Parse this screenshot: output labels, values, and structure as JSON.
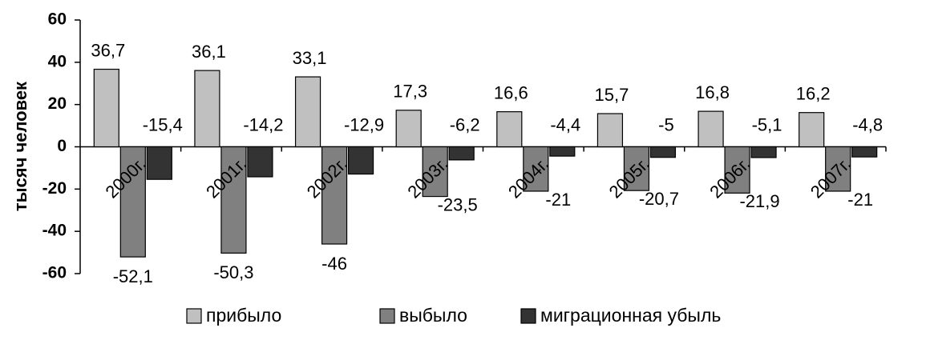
{
  "chart_data": {
    "type": "bar",
    "categories": [
      "2000г.",
      "2001г.",
      "2002г.",
      "2003г.",
      "2004г.",
      "2005г.",
      "2006г.",
      "2007г."
    ],
    "series": [
      {
        "name": "прибыло",
        "values": [
          36.7,
          36.1,
          33.1,
          17.3,
          16.6,
          15.7,
          16.8,
          16.2
        ],
        "labels": [
          "36,7",
          "36,1",
          "33,1",
          "17,3",
          "16,6",
          "15,7",
          "16,8",
          "16,2"
        ],
        "color": "#c0c0c0"
      },
      {
        "name": "выбыло",
        "values": [
          -52.1,
          -50.3,
          -46,
          -23.5,
          -21,
          -20.7,
          -21.9,
          -21
        ],
        "labels": [
          "-52,1",
          "-50,3",
          "-46",
          "-23,5",
          "-21",
          "-20,7",
          "-21,9",
          "-21"
        ],
        "color": "#808080"
      },
      {
        "name": "миграционная убыль",
        "values": [
          -15.4,
          -14.2,
          -12.9,
          -6.2,
          -4.4,
          -5,
          -5.1,
          -4.8
        ],
        "labels": [
          "-15,4",
          "-14,2",
          "-12,9",
          "-6,2",
          "-4,4",
          "-5",
          "-5,1",
          "-4,8"
        ],
        "color": "#333333"
      }
    ],
    "ylabel": "тысяч человек",
    "ylim": [
      -60,
      60
    ],
    "yticks": [
      60,
      40,
      20,
      0,
      -20,
      -40,
      -60
    ],
    "grid": false,
    "legend_position": "bottom"
  }
}
